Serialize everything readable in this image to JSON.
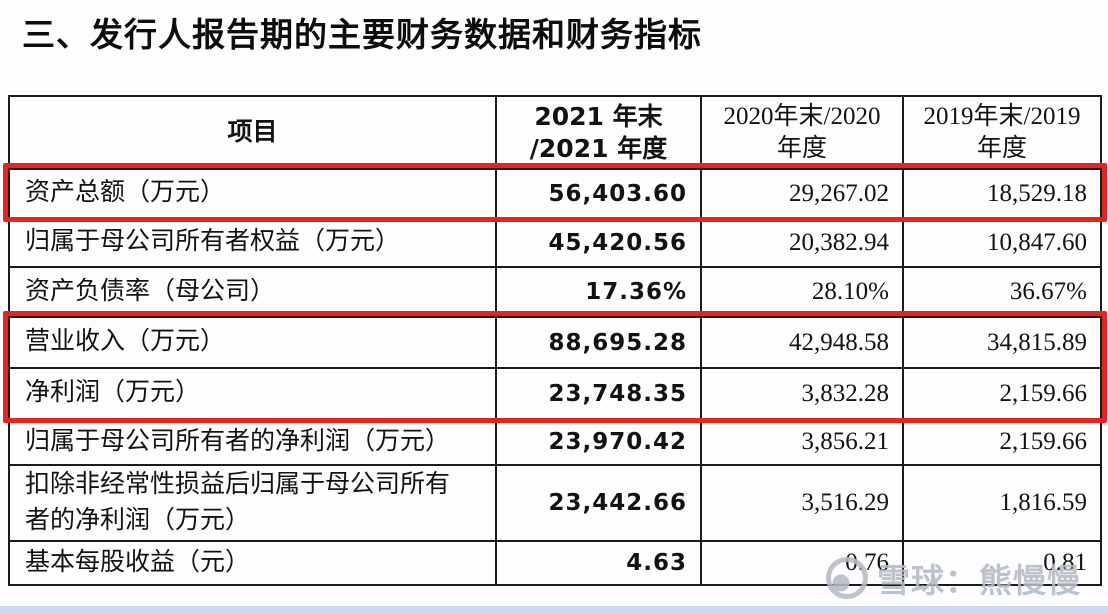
{
  "title": "三、发行人报告期的主要财务数据和财务指标",
  "table": {
    "header": {
      "item": "项目",
      "col_2021": "2021 年末\n/2021 年度",
      "col_2020": "2020年末/2020\n年度",
      "col_2019": "2019年末/2019\n年度"
    },
    "rows": [
      {
        "label": "资产总额（万元）",
        "y2021": "56,403.60",
        "y2020": "29,267.02",
        "y2019": "18,529.18"
      },
      {
        "label": "归属于母公司所有者权益（万元）",
        "y2021": "45,420.56",
        "y2020": "20,382.94",
        "y2019": "10,847.60"
      },
      {
        "label": "资产负债率（母公司）",
        "y2021": "17.36%",
        "y2020": "28.10%",
        "y2019": "36.67%"
      },
      {
        "label": "营业收入（万元）",
        "y2021": "88,695.28",
        "y2020": "42,948.58",
        "y2019": "34,815.89"
      },
      {
        "label": "净利润（万元）",
        "y2021": "23,748.35",
        "y2020": "3,832.28",
        "y2019": "2,159.66"
      },
      {
        "label": "归属于母公司所有者的净利润（万元）",
        "y2021": "23,970.42",
        "y2020": "3,856.21",
        "y2019": "2,159.66"
      },
      {
        "label": "扣除非经常性损益后归属于母公司所有\n者的净利润（万元）",
        "y2021": "23,442.66",
        "y2020": "3,516.29",
        "y2019": "1,816.59"
      },
      {
        "label": "基本每股收益（元）",
        "y2021": "4.63",
        "y2020": "0.76",
        "y2019": "0.81"
      }
    ],
    "highlight_boxes": [
      {
        "from": 0,
        "to": 0
      },
      {
        "from": 3,
        "to": 4
      }
    ],
    "highlight_color": "#e2261f"
  },
  "watermark": {
    "text": "雪球：熊慢慢",
    "color": "#b5bac4"
  },
  "colors": {
    "bottom_strip": "#ccd9ec",
    "table_border": "#1b1b1f",
    "text": "#121215"
  }
}
